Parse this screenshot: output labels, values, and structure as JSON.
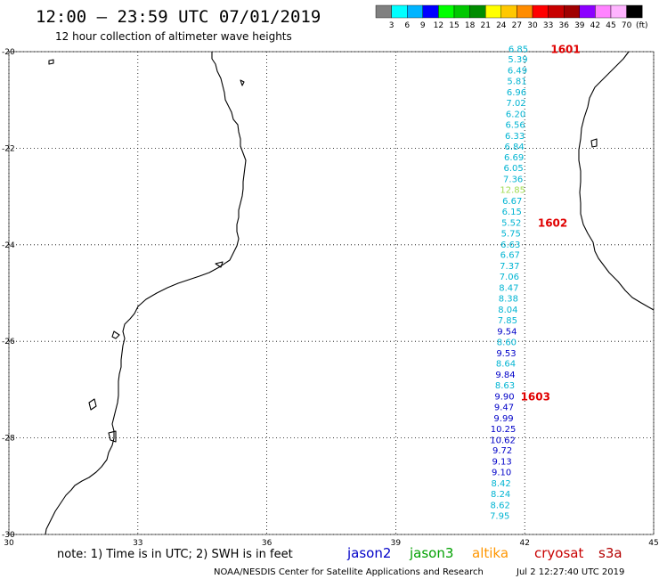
{
  "header": {
    "title": "12:00 – 23:59 UTC 07/01/2019",
    "subtitle": "12 hour collection of altimeter wave heights"
  },
  "legend": {
    "unit": "(ft)",
    "ticks": [
      "3",
      "6",
      "9",
      "12",
      "15",
      "18",
      "21",
      "24",
      "27",
      "30",
      "33",
      "36",
      "39",
      "42",
      "45",
      "70"
    ],
    "colors": [
      "#808080",
      "#00ffff",
      "#00b4ff",
      "#0000ff",
      "#00ff00",
      "#00c800",
      "#008c00",
      "#ffff00",
      "#ffc800",
      "#ff8c00",
      "#ff0000",
      "#c80000",
      "#a00000",
      "#8c00ff",
      "#ff82ff",
      "#ffb4ff",
      "#000000"
    ]
  },
  "map": {
    "lon_range": [
      30,
      45
    ],
    "lat_range": [
      -30,
      -20
    ],
    "x_ticks": [
      30,
      33,
      36,
      39,
      42,
      45
    ],
    "y_ticks": [
      -20,
      -22,
      -24,
      -26,
      -28,
      -30
    ],
    "x_tick_labels": [
      "30",
      "33",
      "36",
      "39",
      "42",
      "45"
    ],
    "y_tick_labels": [
      "-20",
      "-22",
      "-24",
      "-26",
      "-28",
      "-30"
    ],
    "grid": true
  },
  "track": {
    "colors": {
      "jason2": "#0000c8",
      "jason3": "#00a000",
      "altika": "#ff9600",
      "cryosat": "#c80000",
      "s3a": "#b40000",
      "cyan": "#00b4d2",
      "lightgreen": "#a0dc50"
    },
    "points": [
      {
        "text": "6.85",
        "lon": 41.85,
        "lat": -19.95,
        "color": "cyan"
      },
      {
        "text": "5.39",
        "lon": 41.84,
        "lat": -20.17,
        "color": "cyan"
      },
      {
        "text": "6.49",
        "lon": 41.83,
        "lat": -20.4,
        "color": "cyan"
      },
      {
        "text": "5.81",
        "lon": 41.82,
        "lat": -20.62,
        "color": "cyan"
      },
      {
        "text": "6.96",
        "lon": 41.81,
        "lat": -20.85,
        "color": "cyan"
      },
      {
        "text": "7.02",
        "lon": 41.8,
        "lat": -21.07,
        "color": "cyan"
      },
      {
        "text": "6.20",
        "lon": 41.79,
        "lat": -21.3,
        "color": "cyan"
      },
      {
        "text": "6.56",
        "lon": 41.78,
        "lat": -21.52,
        "color": "cyan"
      },
      {
        "text": "6.33",
        "lon": 41.77,
        "lat": -21.75,
        "color": "cyan"
      },
      {
        "text": "6.84",
        "lon": 41.76,
        "lat": -21.97,
        "color": "cyan"
      },
      {
        "text": "6.69",
        "lon": 41.75,
        "lat": -22.2,
        "color": "cyan"
      },
      {
        "text": "6.05",
        "lon": 41.74,
        "lat": -22.42,
        "color": "cyan"
      },
      {
        "text": "7.36",
        "lon": 41.73,
        "lat": -22.65,
        "color": "cyan"
      },
      {
        "text": "12.85",
        "lon": 41.72,
        "lat": -22.87,
        "color": "lightgreen"
      },
      {
        "text": "6.67",
        "lon": 41.71,
        "lat": -23.1,
        "color": "cyan"
      },
      {
        "text": "6.15",
        "lon": 41.7,
        "lat": -23.32,
        "color": "cyan"
      },
      {
        "text": "5.52",
        "lon": 41.69,
        "lat": -23.55,
        "color": "cyan"
      },
      {
        "text": "5.75",
        "lon": 41.68,
        "lat": -23.77,
        "color": "cyan"
      },
      {
        "text": "6.63",
        "lon": 41.67,
        "lat": -24.0,
        "color": "cyan"
      },
      {
        "text": "6.67",
        "lon": 41.66,
        "lat": -24.22,
        "color": "cyan"
      },
      {
        "text": "7.37",
        "lon": 41.65,
        "lat": -24.45,
        "color": "cyan"
      },
      {
        "text": "7.06",
        "lon": 41.64,
        "lat": -24.67,
        "color": "cyan"
      },
      {
        "text": "8.47",
        "lon": 41.63,
        "lat": -24.9,
        "color": "cyan"
      },
      {
        "text": "8.38",
        "lon": 41.62,
        "lat": -25.12,
        "color": "cyan"
      },
      {
        "text": "8.04",
        "lon": 41.61,
        "lat": -25.35,
        "color": "cyan"
      },
      {
        "text": "7.85",
        "lon": 41.6,
        "lat": -25.57,
        "color": "cyan"
      },
      {
        "text": "9.54",
        "lon": 41.59,
        "lat": -25.8,
        "color": "jason2"
      },
      {
        "text": "8.60",
        "lon": 41.58,
        "lat": -26.02,
        "color": "cyan"
      },
      {
        "text": "9.53",
        "lon": 41.57,
        "lat": -26.25,
        "color": "jason2"
      },
      {
        "text": "8.64",
        "lon": 41.56,
        "lat": -26.47,
        "color": "cyan"
      },
      {
        "text": "9.84",
        "lon": 41.55,
        "lat": -26.7,
        "color": "jason2"
      },
      {
        "text": "8.63",
        "lon": 41.54,
        "lat": -26.92,
        "color": "cyan"
      },
      {
        "text": "9.90",
        "lon": 41.53,
        "lat": -27.15,
        "color": "jason2"
      },
      {
        "text": "9.47",
        "lon": 41.52,
        "lat": -27.37,
        "color": "jason2"
      },
      {
        "text": "9.99",
        "lon": 41.51,
        "lat": -27.6,
        "color": "jason2"
      },
      {
        "text": "10.25",
        "lon": 41.5,
        "lat": -27.82,
        "color": "jason2"
      },
      {
        "text": "10.62",
        "lon": 41.49,
        "lat": -28.05,
        "color": "jason2"
      },
      {
        "text": "9.72",
        "lon": 41.48,
        "lat": -28.27,
        "color": "jason2"
      },
      {
        "text": "9.13",
        "lon": 41.47,
        "lat": -28.5,
        "color": "jason2"
      },
      {
        "text": "9.10",
        "lon": 41.46,
        "lat": -28.72,
        "color": "jason2"
      },
      {
        "text": "8.42",
        "lon": 41.45,
        "lat": -28.95,
        "color": "cyan"
      },
      {
        "text": "8.24",
        "lon": 41.44,
        "lat": -29.17,
        "color": "cyan"
      },
      {
        "text": "8.62",
        "lon": 41.43,
        "lat": -29.4,
        "color": "cyan"
      },
      {
        "text": "7.95",
        "lon": 41.42,
        "lat": -29.62,
        "color": "cyan"
      }
    ],
    "pass_labels": [
      {
        "text": "1601",
        "lon": 42.95,
        "lat": -19.95
      },
      {
        "text": "1602",
        "lon": 42.65,
        "lat": -23.55
      },
      {
        "text": "1603",
        "lon": 42.25,
        "lat": -27.15
      }
    ]
  },
  "footer": {
    "note": "note: 1) Time is in UTC; 2) SWH is in feet",
    "satellites": [
      {
        "label": "jason2",
        "color": "jason2"
      },
      {
        "label": "jason3",
        "color": "jason3"
      },
      {
        "label": "altika",
        "color": "altika"
      },
      {
        "label": "cryosat",
        "color": "cryosat"
      },
      {
        "label": "s3a",
        "color": "s3a"
      }
    ],
    "credit": "NOAA/NESDIS Center for Satellite Applications and Research",
    "timestamp": "Jul  2 12:27:40 UTC 2019"
  }
}
